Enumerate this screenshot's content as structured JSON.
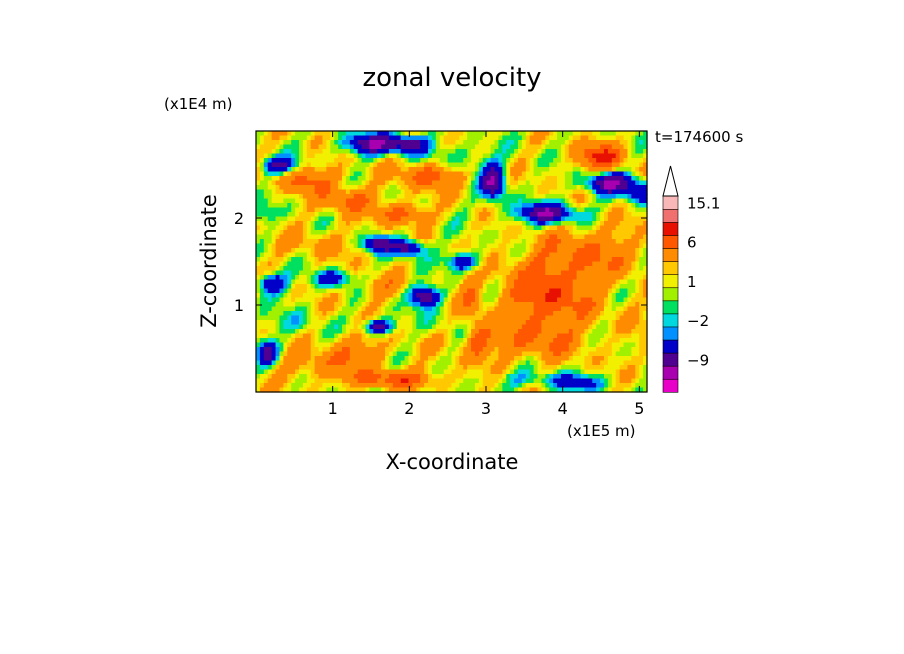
{
  "chart_data": {
    "type": "heatmap",
    "title": "zonal velocity",
    "xlabel": "X-coordinate",
    "ylabel": "Z-coordinate",
    "x_unit": "(x1E5 m)",
    "y_unit": "(x1E4 m)",
    "time_label": "t=174600 s",
    "xlim": [
      0,
      5.1
    ],
    "ylim": [
      0,
      3.0
    ],
    "x_ticks": [
      1,
      2,
      3,
      4,
      5
    ],
    "y_ticks": [
      1,
      2
    ],
    "x_tick_labels": [
      "1",
      "2",
      "3",
      "4",
      "5"
    ],
    "y_tick_labels": [
      "1",
      "2"
    ],
    "colorbar": {
      "levels": [
        -15,
        -12,
        -9,
        -6,
        -3,
        -2,
        -1,
        0,
        1,
        2,
        3,
        6,
        9,
        12,
        15.1
      ],
      "colors": [
        "#e800c8",
        "#a800b0",
        "#500090",
        "#0000c8",
        "#0090ff",
        "#00d8e0",
        "#00e060",
        "#a0f000",
        "#f0f000",
        "#ffc800",
        "#ff8c00",
        "#ff5800",
        "#e81000",
        "#f07070",
        "#f8b8b8"
      ],
      "labels": [
        {
          "value": 15.1,
          "text": "15.1"
        },
        {
          "value": 6,
          "text": "6"
        },
        {
          "value": 1,
          "text": "1"
        },
        {
          "value": -2,
          "text": "−2"
        },
        {
          "value": -9,
          "text": "−9"
        }
      ],
      "extend": "max"
    },
    "features": [
      {
        "x": 3.8,
        "z": 1.1,
        "sx": 0.55,
        "sz": 0.45,
        "u": 7
      },
      {
        "x": 4.4,
        "z": 1.6,
        "sx": 0.6,
        "sz": 0.3,
        "u": 4
      },
      {
        "x": 4.5,
        "z": 2.7,
        "sx": 0.3,
        "sz": 0.15,
        "u": 8
      },
      {
        "x": 3.5,
        "z": 0.55,
        "sx": 0.7,
        "sz": 0.2,
        "u": 3
      },
      {
        "x": 3.6,
        "z": 0.15,
        "sx": 0.5,
        "sz": 0.1,
        "u": -3
      },
      {
        "x": 4.2,
        "z": 0.1,
        "sx": 0.35,
        "sz": 0.1,
        "u": -5
      },
      {
        "x": 3.8,
        "z": 2.05,
        "sx": 0.4,
        "sz": 0.12,
        "u": -10
      },
      {
        "x": 4.6,
        "z": 2.4,
        "sx": 0.3,
        "sz": 0.12,
        "u": -10
      },
      {
        "x": 5.0,
        "z": 2.3,
        "sx": 0.2,
        "sz": 0.15,
        "u": -6
      },
      {
        "x": 3.1,
        "z": 2.4,
        "sx": 0.15,
        "sz": 0.2,
        "u": -10
      },
      {
        "x": 2.6,
        "z": 2.65,
        "sx": 0.5,
        "sz": 0.2,
        "u": -3
      },
      {
        "x": 1.5,
        "z": 2.85,
        "sx": 0.35,
        "sz": 0.12,
        "u": -10
      },
      {
        "x": 2.0,
        "z": 2.85,
        "sx": 0.25,
        "sz": 0.1,
        "u": -8
      },
      {
        "x": 2.3,
        "z": 2.5,
        "sx": 0.4,
        "sz": 0.15,
        "u": 7
      },
      {
        "x": 1.2,
        "z": 2.2,
        "sx": 0.35,
        "sz": 0.15,
        "u": 5
      },
      {
        "x": 0.7,
        "z": 2.45,
        "sx": 0.4,
        "sz": 0.15,
        "u": 5
      },
      {
        "x": 0.3,
        "z": 2.6,
        "sx": 0.25,
        "sz": 0.1,
        "u": -8
      },
      {
        "x": 0.1,
        "z": 2.05,
        "sx": 0.15,
        "sz": 0.12,
        "u": -3
      },
      {
        "x": 1.6,
        "z": 1.7,
        "sx": 0.2,
        "sz": 0.1,
        "u": -9
      },
      {
        "x": 2.0,
        "z": 1.65,
        "sx": 0.2,
        "sz": 0.1,
        "u": -9
      },
      {
        "x": 2.7,
        "z": 1.5,
        "sx": 0.2,
        "sz": 0.1,
        "u": -8
      },
      {
        "x": 1.0,
        "z": 1.3,
        "sx": 0.25,
        "sz": 0.1,
        "u": -6
      },
      {
        "x": 0.2,
        "z": 1.25,
        "sx": 0.2,
        "sz": 0.12,
        "u": -8
      },
      {
        "x": 2.2,
        "z": 1.1,
        "sx": 0.2,
        "sz": 0.12,
        "u": -10
      },
      {
        "x": 1.6,
        "z": 0.75,
        "sx": 0.2,
        "sz": 0.08,
        "u": -9
      },
      {
        "x": 2.4,
        "z": 0.8,
        "sx": 0.3,
        "sz": 0.15,
        "u": -1
      },
      {
        "x": 1.6,
        "z": 1.2,
        "sx": 0.3,
        "sz": 0.15,
        "u": 3
      },
      {
        "x": 1.3,
        "z": 0.45,
        "sx": 0.4,
        "sz": 0.2,
        "u": 4
      },
      {
        "x": 1.8,
        "z": 0.15,
        "sx": 0.6,
        "sz": 0.1,
        "u": 6
      },
      {
        "x": 0.7,
        "z": 0.3,
        "sx": 0.45,
        "sz": 0.15,
        "u": 3
      },
      {
        "x": 0.5,
        "z": 0.8,
        "sx": 0.35,
        "sz": 0.15,
        "u": -2
      },
      {
        "x": 0.8,
        "z": 1.7,
        "sx": 0.5,
        "sz": 0.15,
        "u": 2
      },
      {
        "x": 2.8,
        "z": 1.1,
        "sx": 0.15,
        "sz": 0.25,
        "u": 4
      },
      {
        "x": 1.9,
        "z": 2.05,
        "sx": 0.3,
        "sz": 0.12,
        "u": 6
      },
      {
        "x": 2.9,
        "z": 0.6,
        "sx": 0.15,
        "sz": 0.2,
        "u": 5
      },
      {
        "x": 0.15,
        "z": 0.45,
        "sx": 0.15,
        "sz": 0.15,
        "u": -7
      },
      {
        "x": 4.9,
        "z": 0.9,
        "sx": 0.25,
        "sz": 0.3,
        "u": 1
      },
      {
        "x": 0.05,
        "z": 2.85,
        "sx": 0.15,
        "sz": 0.12,
        "u": 0
      }
    ]
  }
}
